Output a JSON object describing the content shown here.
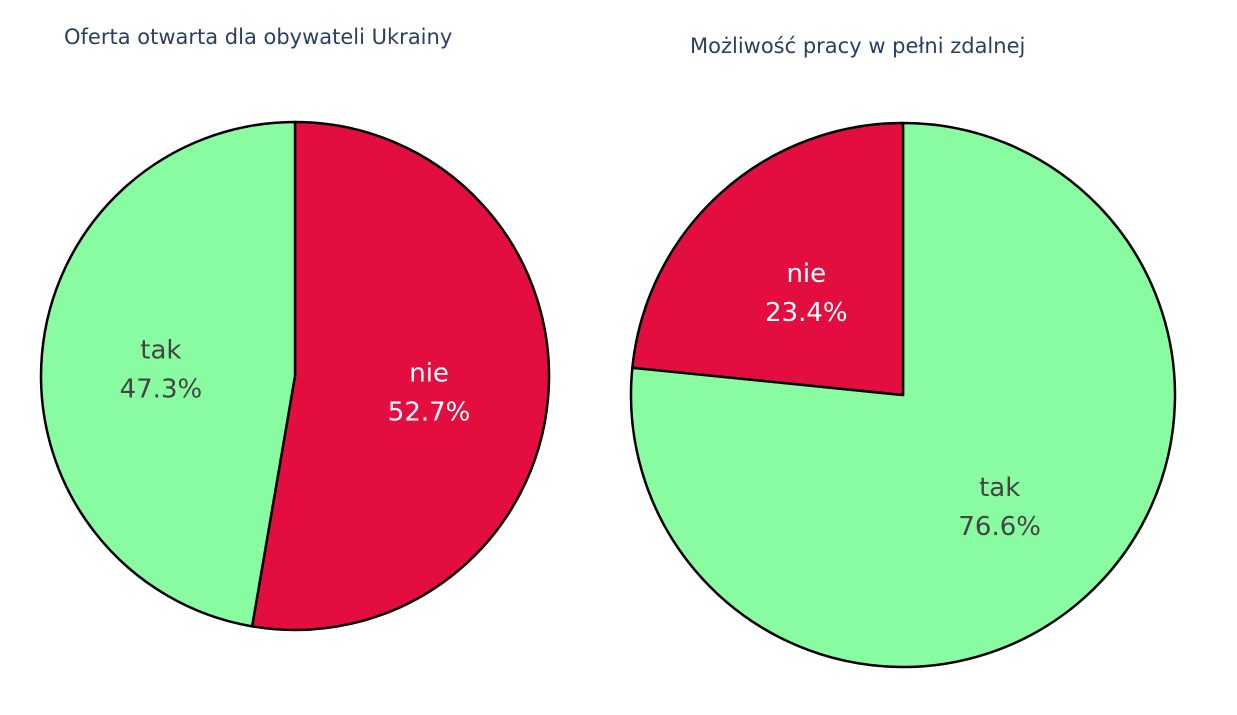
{
  "colors": {
    "tak": "#89fca1",
    "nie": "#e30e3f",
    "outline": "#000000",
    "label_on_light": "#444444",
    "label_on_dark": "#ffffff"
  },
  "chart_data": [
    {
      "type": "pie",
      "title": "Oferta otwarta dla obywateli Ukrainy",
      "labels": [
        "nie",
        "tak"
      ],
      "values": [
        52.7,
        47.3
      ],
      "percent_labels": [
        "52.7%",
        "47.3%"
      ],
      "slice_colors": [
        "#e30e3f",
        "#89fca1"
      ],
      "text_colors": [
        "#ffffff",
        "#444444"
      ],
      "direction": "clockwise",
      "start": "top"
    },
    {
      "type": "pie",
      "title": "Możliwość pracy w pełni zdalnej",
      "labels": [
        "tak",
        "nie"
      ],
      "values": [
        76.6,
        23.4
      ],
      "percent_labels": [
        "76.6%",
        "23.4%"
      ],
      "slice_colors": [
        "#89fca1",
        "#e30e3f"
      ],
      "text_colors": [
        "#444444",
        "#ffffff"
      ],
      "direction": "clockwise",
      "start": "top"
    }
  ]
}
